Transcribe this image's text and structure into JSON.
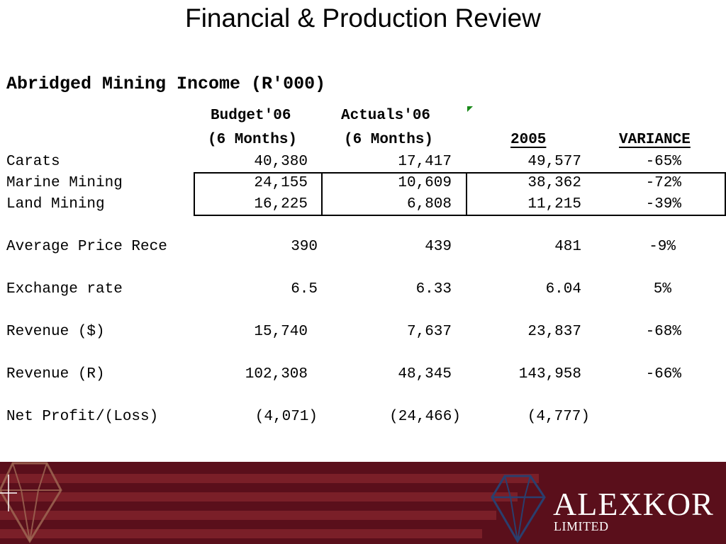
{
  "title": "Financial & Production Review",
  "subtitle": "Abridged Mining Income (R'000)",
  "columns": {
    "budget": [
      "Budget'06",
      "(6 Months)"
    ],
    "actuals": [
      "Actuals'06",
      "(6 Months)"
    ],
    "prior": "2005",
    "variance": "VARIANCE"
  },
  "rows": [
    {
      "label": "Carats",
      "budget": "40,380",
      "actuals": "17,417",
      "prior": "49,577",
      "variance": "-65%"
    },
    {
      "label": "Marine Mining",
      "budget": "24,155",
      "actuals": "10,609",
      "prior": "38,362",
      "variance": "-72%"
    },
    {
      "label": "Land Mining",
      "budget": "16,225",
      "actuals": "6,808",
      "prior": "11,215",
      "variance": "-39%"
    },
    {
      "label": "Average Price Rece",
      "budget": "390",
      "actuals": "439",
      "prior": "481",
      "variance": "-9%"
    },
    {
      "label": "Exchange rate",
      "budget": "6.5",
      "actuals": "6.33",
      "prior": "6.04",
      "variance": "5%"
    },
    {
      "label": "Revenue ($)",
      "budget": "15,740",
      "actuals": "7,637",
      "prior": "23,837",
      "variance": "-68%"
    },
    {
      "label": "Revenue (R)",
      "budget": "102,308",
      "actuals": "48,345",
      "prior": "143,958",
      "variance": "-66%"
    },
    {
      "label": "Net Profit/(Loss)",
      "budget": "(4,071)",
      "actuals": "(24,466)",
      "prior": "(4,777)",
      "variance": ""
    }
  ],
  "brand": {
    "name": "ALEXKOR",
    "sub": "LIMITED"
  },
  "colors": {
    "footer": "#5a0f1b",
    "stripe": "#7a1f28",
    "logo": "#2a3f6e",
    "marker": "#1a8a1a"
  }
}
